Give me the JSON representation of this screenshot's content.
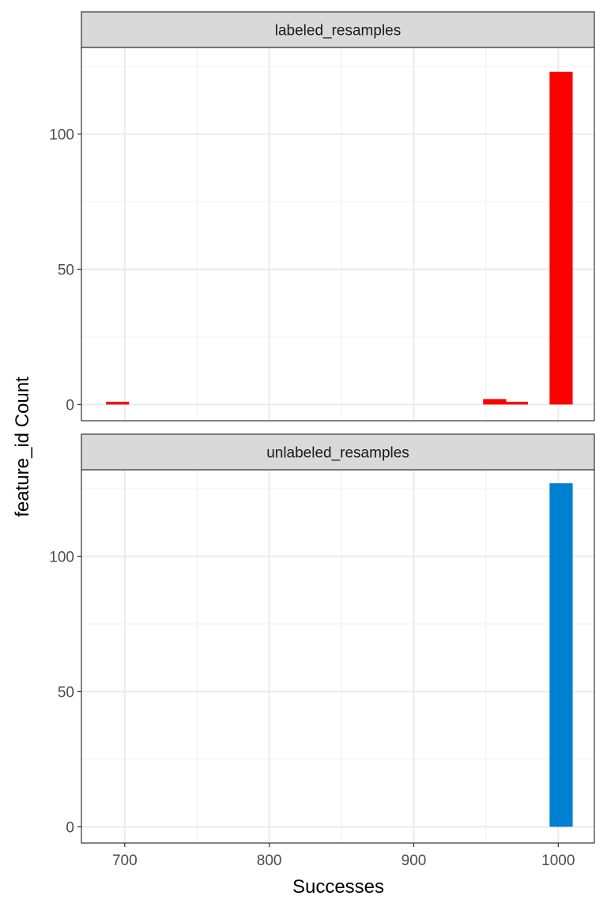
{
  "chart_data": {
    "type": "bar",
    "xlabel": "Successes",
    "ylabel": "feature_id Count",
    "xlim": [
      670,
      1025
    ],
    "ylim": [
      -6,
      132
    ],
    "x_ticks": [
      700,
      800,
      900,
      1000
    ],
    "x_tick_labels": [
      "700",
      "800",
      "900",
      "1000"
    ],
    "y_ticks": [
      0,
      50,
      100
    ],
    "y_tick_labels": [
      "0",
      "50",
      "100"
    ],
    "grid": true,
    "bin_width": 16,
    "legend": "none",
    "panels": [
      {
        "title": "labeled_resamples",
        "color": "#FF0000",
        "bins": [
          {
            "x": 695,
            "count": 1
          },
          {
            "x": 956,
            "count": 2
          },
          {
            "x": 971,
            "count": 1
          },
          {
            "x": 1002,
            "count": 123
          }
        ]
      },
      {
        "title": "unlabeled_resamples",
        "color": "#0080D0",
        "bins": [
          {
            "x": 1002,
            "count": 127
          }
        ]
      }
    ]
  }
}
